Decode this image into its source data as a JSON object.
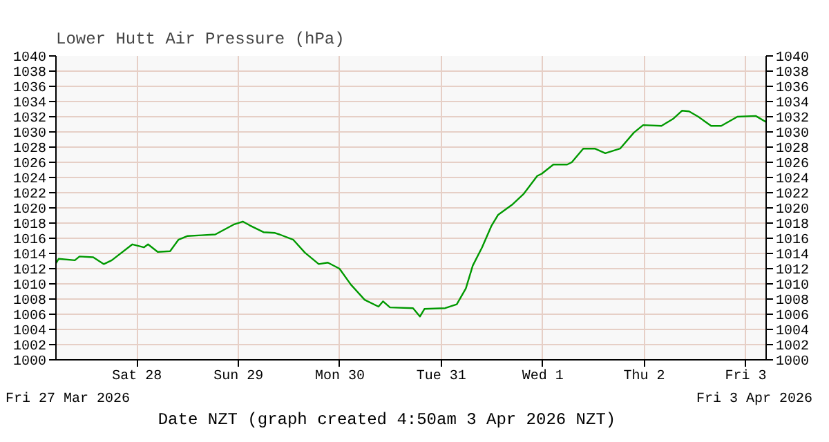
{
  "chart_data": {
    "type": "line",
    "title": "Lower Hutt Air Pressure (hPa)",
    "xlabel": "Date NZT (graph created 4:50am 3 Apr 2026 NZT)",
    "annotations": [
      "Fri 27 Mar 2026",
      "Fri 3 Apr 2026"
    ],
    "xlim": [
      "2026-03-27T04:50",
      "2026-04-03T04:50"
    ],
    "xticks": [
      {
        "value": "2026-03-28",
        "label": "Sat 28"
      },
      {
        "value": "2026-03-29",
        "label": "Sun 29"
      },
      {
        "value": "2026-03-30",
        "label": "Mon 30"
      },
      {
        "value": "2026-03-31",
        "label": "Tue 31"
      },
      {
        "value": "2026-04-01",
        "label": "Wed 1"
      },
      {
        "value": "2026-04-02",
        "label": "Thu 2"
      },
      {
        "value": "2026-04-03",
        "label": "Fri 3"
      }
    ],
    "ylim": [
      1000,
      1040
    ],
    "yticks": [
      1000,
      1002,
      1004,
      1006,
      1008,
      1010,
      1012,
      1014,
      1016,
      1018,
      1020,
      1022,
      1024,
      1026,
      1028,
      1030,
      1032,
      1034,
      1036,
      1038,
      1040
    ],
    "y2lim": [
      1000,
      1040
    ],
    "y2ticks": [
      1000,
      1002,
      1004,
      1006,
      1008,
      1010,
      1012,
      1014,
      1016,
      1018,
      1020,
      1022,
      1024,
      1026,
      1028,
      1030,
      1032,
      1034,
      1036,
      1038,
      1040
    ],
    "grid": true,
    "series": [
      {
        "color": "#009900",
        "x": [
          "2026-03-27T04:50",
          "2026-03-27T05:29",
          "2026-03-27T09:18",
          "2026-03-27T10:24",
          "2026-03-27T13:39",
          "2026-03-27T16:10",
          "2026-03-27T18:02",
          "2026-03-27T22:55",
          "2026-03-28T01:38",
          "2026-03-28T02:37",
          "2026-03-28T04:54",
          "2026-03-28T07:50",
          "2026-03-28T09:48",
          "2026-03-28T11:59",
          "2026-03-28T15:15",
          "2026-03-28T18:31",
          "2026-03-28T22:51",
          "2026-03-29T01:02",
          "2026-03-29T02:40",
          "2026-03-29T05:56",
          "2026-03-29T08:39",
          "2026-03-29T09:44",
          "2026-03-29T12:59",
          "2026-03-29T15:44",
          "2026-03-29T19:00",
          "2026-03-29T21:09",
          "2026-03-29T23:54",
          "2026-03-30T02:36",
          "2026-03-30T05:52",
          "2026-03-30T09:08",
          "2026-03-30T10:13",
          "2026-03-30T11:51",
          "2026-03-30T17:18",
          "2026-03-30T18:56",
          "2026-03-30T20:00",
          "2026-03-31T00:54",
          "2026-03-31T03:39",
          "2026-03-31T05:48",
          "2026-03-31T07:26",
          "2026-03-31T09:38",
          "2026-03-31T11:49",
          "2026-03-31T13:27",
          "2026-03-31T16:43",
          "2026-03-31T19:25",
          "2026-03-31T22:41",
          "2026-03-31T23:46",
          "2026-04-01T02:30",
          "2026-04-01T05:46",
          "2026-04-01T06:51",
          "2026-04-01T09:34",
          "2026-04-01T12:18",
          "2026-04-01T14:47",
          "2026-04-01T18:17",
          "2026-04-01T21:32",
          "2026-04-01T23:44",
          "2026-04-02T04:04",
          "2026-04-02T06:47",
          "2026-04-02T08:58",
          "2026-04-02T10:36",
          "2026-04-02T12:47",
          "2026-04-02T15:49",
          "2026-04-02T18:13",
          "2026-04-02T22:02",
          "2026-04-03T02:22",
          "2026-04-03T04:50"
        ],
        "values": [
          1012.7,
          1013.3,
          1013.1,
          1013.6,
          1013.5,
          1012.6,
          1013.1,
          1015.2,
          1014.8,
          1015.2,
          1014.2,
          1014.3,
          1015.8,
          1016.3,
          1016.4,
          1016.5,
          1017.8,
          1018.2,
          1017.7,
          1016.8,
          1016.7,
          1016.5,
          1015.8,
          1014.1,
          1012.6,
          1012.8,
          1012.0,
          1009.9,
          1007.9,
          1007.0,
          1007.7,
          1006.9,
          1006.8,
          1005.7,
          1006.7,
          1006.8,
          1007.3,
          1009.4,
          1012.4,
          1014.8,
          1017.6,
          1019.1,
          1020.4,
          1021.8,
          1024.2,
          1024.5,
          1025.7,
          1025.7,
          1026.0,
          1027.8,
          1027.8,
          1027.2,
          1027.8,
          1029.9,
          1030.9,
          1030.8,
          1031.7,
          1032.8,
          1032.7,
          1032.0,
          1030.8,
          1030.8,
          1032.0,
          1032.1,
          1031.3
        ]
      }
    ]
  }
}
